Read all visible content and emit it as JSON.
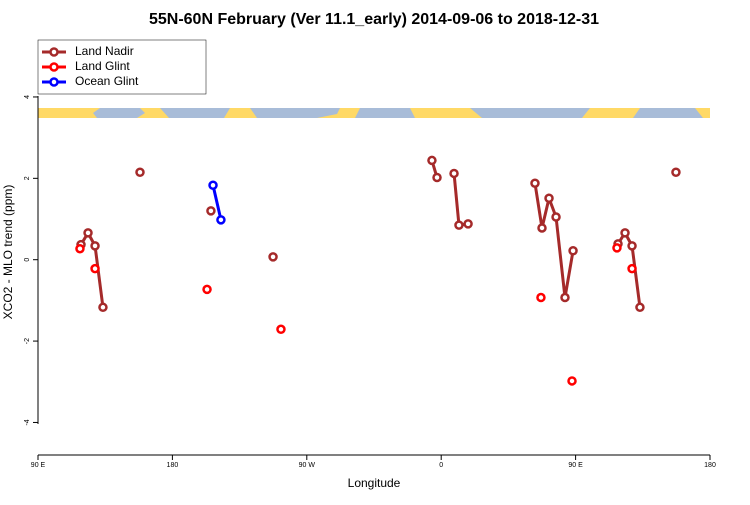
{
  "chart_data": {
    "type": "line",
    "title": "55N-60N February (Ver 11.1_early)   2014-09-06 to 2018-12-31",
    "xlabel": "Longitude",
    "ylabel": "XCO2 - MLO trend (ppm)",
    "xlim": [
      90,
      540
    ],
    "ylim": [
      -4.8,
      5.4
    ],
    "xticks": [
      {
        "value": 90,
        "label": "90 E"
      },
      180,
      {
        "value": 270,
        "label": "90 W"
      },
      {
        "value": 360,
        "label": "0"
      },
      {
        "value": 450,
        "label": "90 E"
      },
      {
        "value": 540,
        "label": "180"
      }
    ],
    "yticks": [
      -4,
      -2,
      0,
      2,
      4
    ],
    "legend": "top-left",
    "series": [
      {
        "name": "Land Nadir",
        "color": "#a52a2a",
        "lines": true,
        "x": [
          118.8,
          123.5,
          128.2,
          133.5,
          null,
          158.3,
          null,
          205.8,
          null,
          247.4,
          null,
          353.8,
          357.2,
          null,
          368.6,
          371.9,
          378.0,
          null,
          422.8,
          427.5,
          432.2,
          436.9,
          442.9,
          448.3,
          null,
          478.4,
          483.1,
          487.8,
          493.1,
          null,
          517.2
        ],
        "values": [
          0.37,
          0.66,
          0.34,
          -1.17,
          null,
          2.15,
          null,
          1.2,
          null,
          0.07,
          null,
          2.44,
          2.02,
          null,
          2.12,
          0.85,
          0.88,
          null,
          1.88,
          0.78,
          1.51,
          1.05,
          -0.93,
          0.22,
          null,
          0.39,
          0.66,
          0.34,
          -1.17,
          null,
          2.15
        ]
      },
      {
        "name": "Land Glint",
        "color": "#ff0000",
        "lines": false,
        "x": [
          118.1,
          128.2,
          203.2,
          252.7,
          426.8,
          447.6,
          477.7,
          487.8
        ],
        "values": [
          0.27,
          -0.22,
          -0.73,
          -1.71,
          -0.93,
          -2.98,
          0.29,
          -0.22
        ]
      },
      {
        "name": "Ocean Glint",
        "color": "#0000ff",
        "lines": true,
        "x": [
          207.2,
          212.5
        ],
        "values": [
          1.83,
          0.98
        ]
      }
    ]
  }
}
